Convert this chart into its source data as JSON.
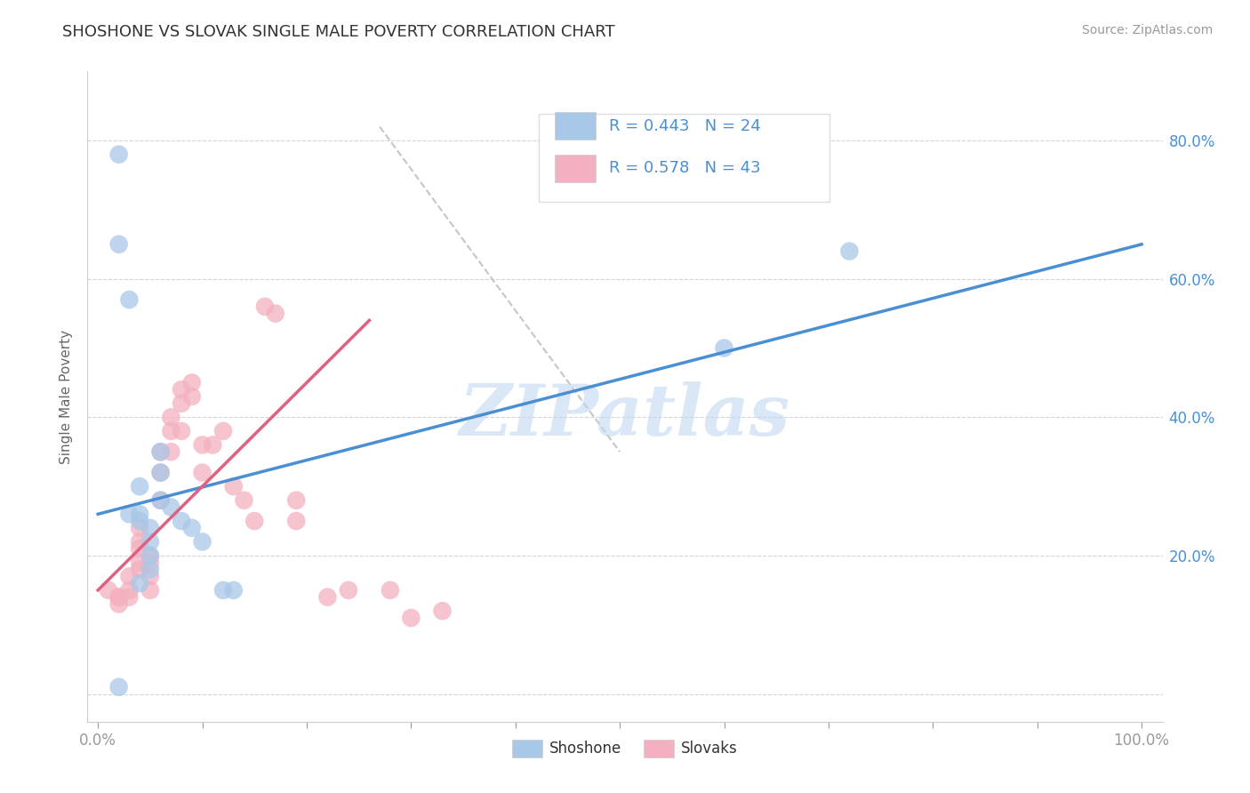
{
  "title": "SHOSHONE VS SLOVAK SINGLE MALE POVERTY CORRELATION CHART",
  "source_text": "Source: ZipAtlas.com",
  "ylabel": "Single Male Poverty",
  "watermark": "ZIPatlas",
  "x_ticks": [
    0.0,
    0.1,
    0.2,
    0.3,
    0.4,
    0.5,
    0.6,
    0.7,
    0.8,
    0.9,
    1.0
  ],
  "y_ticks": [
    0.0,
    0.2,
    0.4,
    0.6,
    0.8
  ],
  "xlim": [
    -0.01,
    1.02
  ],
  "ylim": [
    -0.04,
    0.9
  ],
  "shoshone_color": "#a8c8e8",
  "slovak_color": "#f4b0c0",
  "shoshone_line_color": "#4a8fd4",
  "slovak_line_color": "#e06080",
  "shoshone_R": 0.443,
  "shoshone_N": 24,
  "slovak_R": 0.578,
  "slovak_N": 43,
  "legend_R_color": "#4a8fd4",
  "grid_color": "#d0d0d0",
  "title_color": "#333333",
  "axis_color": "#4a8fd4",
  "watermark_color": "#c0d8f0",
  "shoshone_scatter_x": [
    0.02,
    0.02,
    0.03,
    0.03,
    0.04,
    0.04,
    0.04,
    0.05,
    0.05,
    0.05,
    0.06,
    0.06,
    0.07,
    0.08,
    0.09,
    0.1,
    0.12,
    0.13,
    0.6,
    0.72,
    0.05,
    0.04,
    0.06,
    0.02
  ],
  "shoshone_scatter_y": [
    0.78,
    0.65,
    0.57,
    0.26,
    0.3,
    0.26,
    0.25,
    0.24,
    0.22,
    0.2,
    0.35,
    0.28,
    0.27,
    0.25,
    0.24,
    0.22,
    0.15,
    0.15,
    0.5,
    0.64,
    0.18,
    0.16,
    0.32,
    0.01
  ],
  "slovak_scatter_x": [
    0.01,
    0.02,
    0.02,
    0.02,
    0.03,
    0.03,
    0.03,
    0.04,
    0.04,
    0.04,
    0.04,
    0.04,
    0.05,
    0.05,
    0.05,
    0.05,
    0.06,
    0.06,
    0.06,
    0.07,
    0.07,
    0.07,
    0.08,
    0.08,
    0.08,
    0.09,
    0.09,
    0.1,
    0.1,
    0.11,
    0.12,
    0.13,
    0.14,
    0.15,
    0.16,
    0.17,
    0.19,
    0.19,
    0.22,
    0.24,
    0.28,
    0.3,
    0.33
  ],
  "slovak_scatter_y": [
    0.15,
    0.14,
    0.14,
    0.13,
    0.17,
    0.15,
    0.14,
    0.24,
    0.22,
    0.21,
    0.19,
    0.18,
    0.2,
    0.19,
    0.17,
    0.15,
    0.35,
    0.32,
    0.28,
    0.4,
    0.38,
    0.35,
    0.44,
    0.42,
    0.38,
    0.45,
    0.43,
    0.36,
    0.32,
    0.36,
    0.38,
    0.3,
    0.28,
    0.25,
    0.56,
    0.55,
    0.28,
    0.25,
    0.14,
    0.15,
    0.15,
    0.11,
    0.12
  ],
  "shoshone_line_x": [
    0.0,
    1.0
  ],
  "shoshone_line_y": [
    0.26,
    0.65
  ],
  "slovak_line_x": [
    0.0,
    0.26
  ],
  "slovak_line_y": [
    0.15,
    0.54
  ],
  "diag_line_x": [
    0.27,
    0.5
  ],
  "diag_line_y": [
    0.82,
    0.35
  ]
}
